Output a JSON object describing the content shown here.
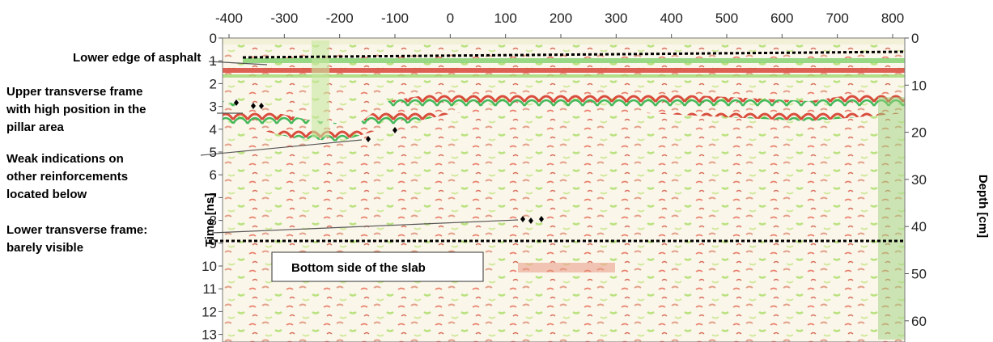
{
  "top_axis": {
    "ticks": [
      -400,
      -300,
      -200,
      -100,
      0,
      100,
      200,
      300,
      400,
      500,
      600,
      700,
      800
    ]
  },
  "left_axis": {
    "label": "Time [ns]",
    "ticks": [
      0,
      1,
      2,
      3,
      4,
      5,
      6,
      7,
      8,
      9,
      10,
      11,
      12,
      13
    ]
  },
  "right_axis": {
    "label": "Depth [cm]",
    "ticks": [
      0,
      10,
      20,
      30,
      40,
      50,
      60
    ]
  },
  "annotations": [
    {
      "lines": [
        "Lower edge of asphalt"
      ]
    },
    {
      "lines": [
        "Upper transverse frame",
        "with high position in the",
        "pillar area"
      ]
    },
    {
      "lines": [
        "Weak indications on",
        "other reinforcements",
        "located below"
      ]
    },
    {
      "lines": [
        "Lower transverse frame:",
        "barely visible"
      ]
    }
  ],
  "slab_label": "Bottom side of the slab"
}
